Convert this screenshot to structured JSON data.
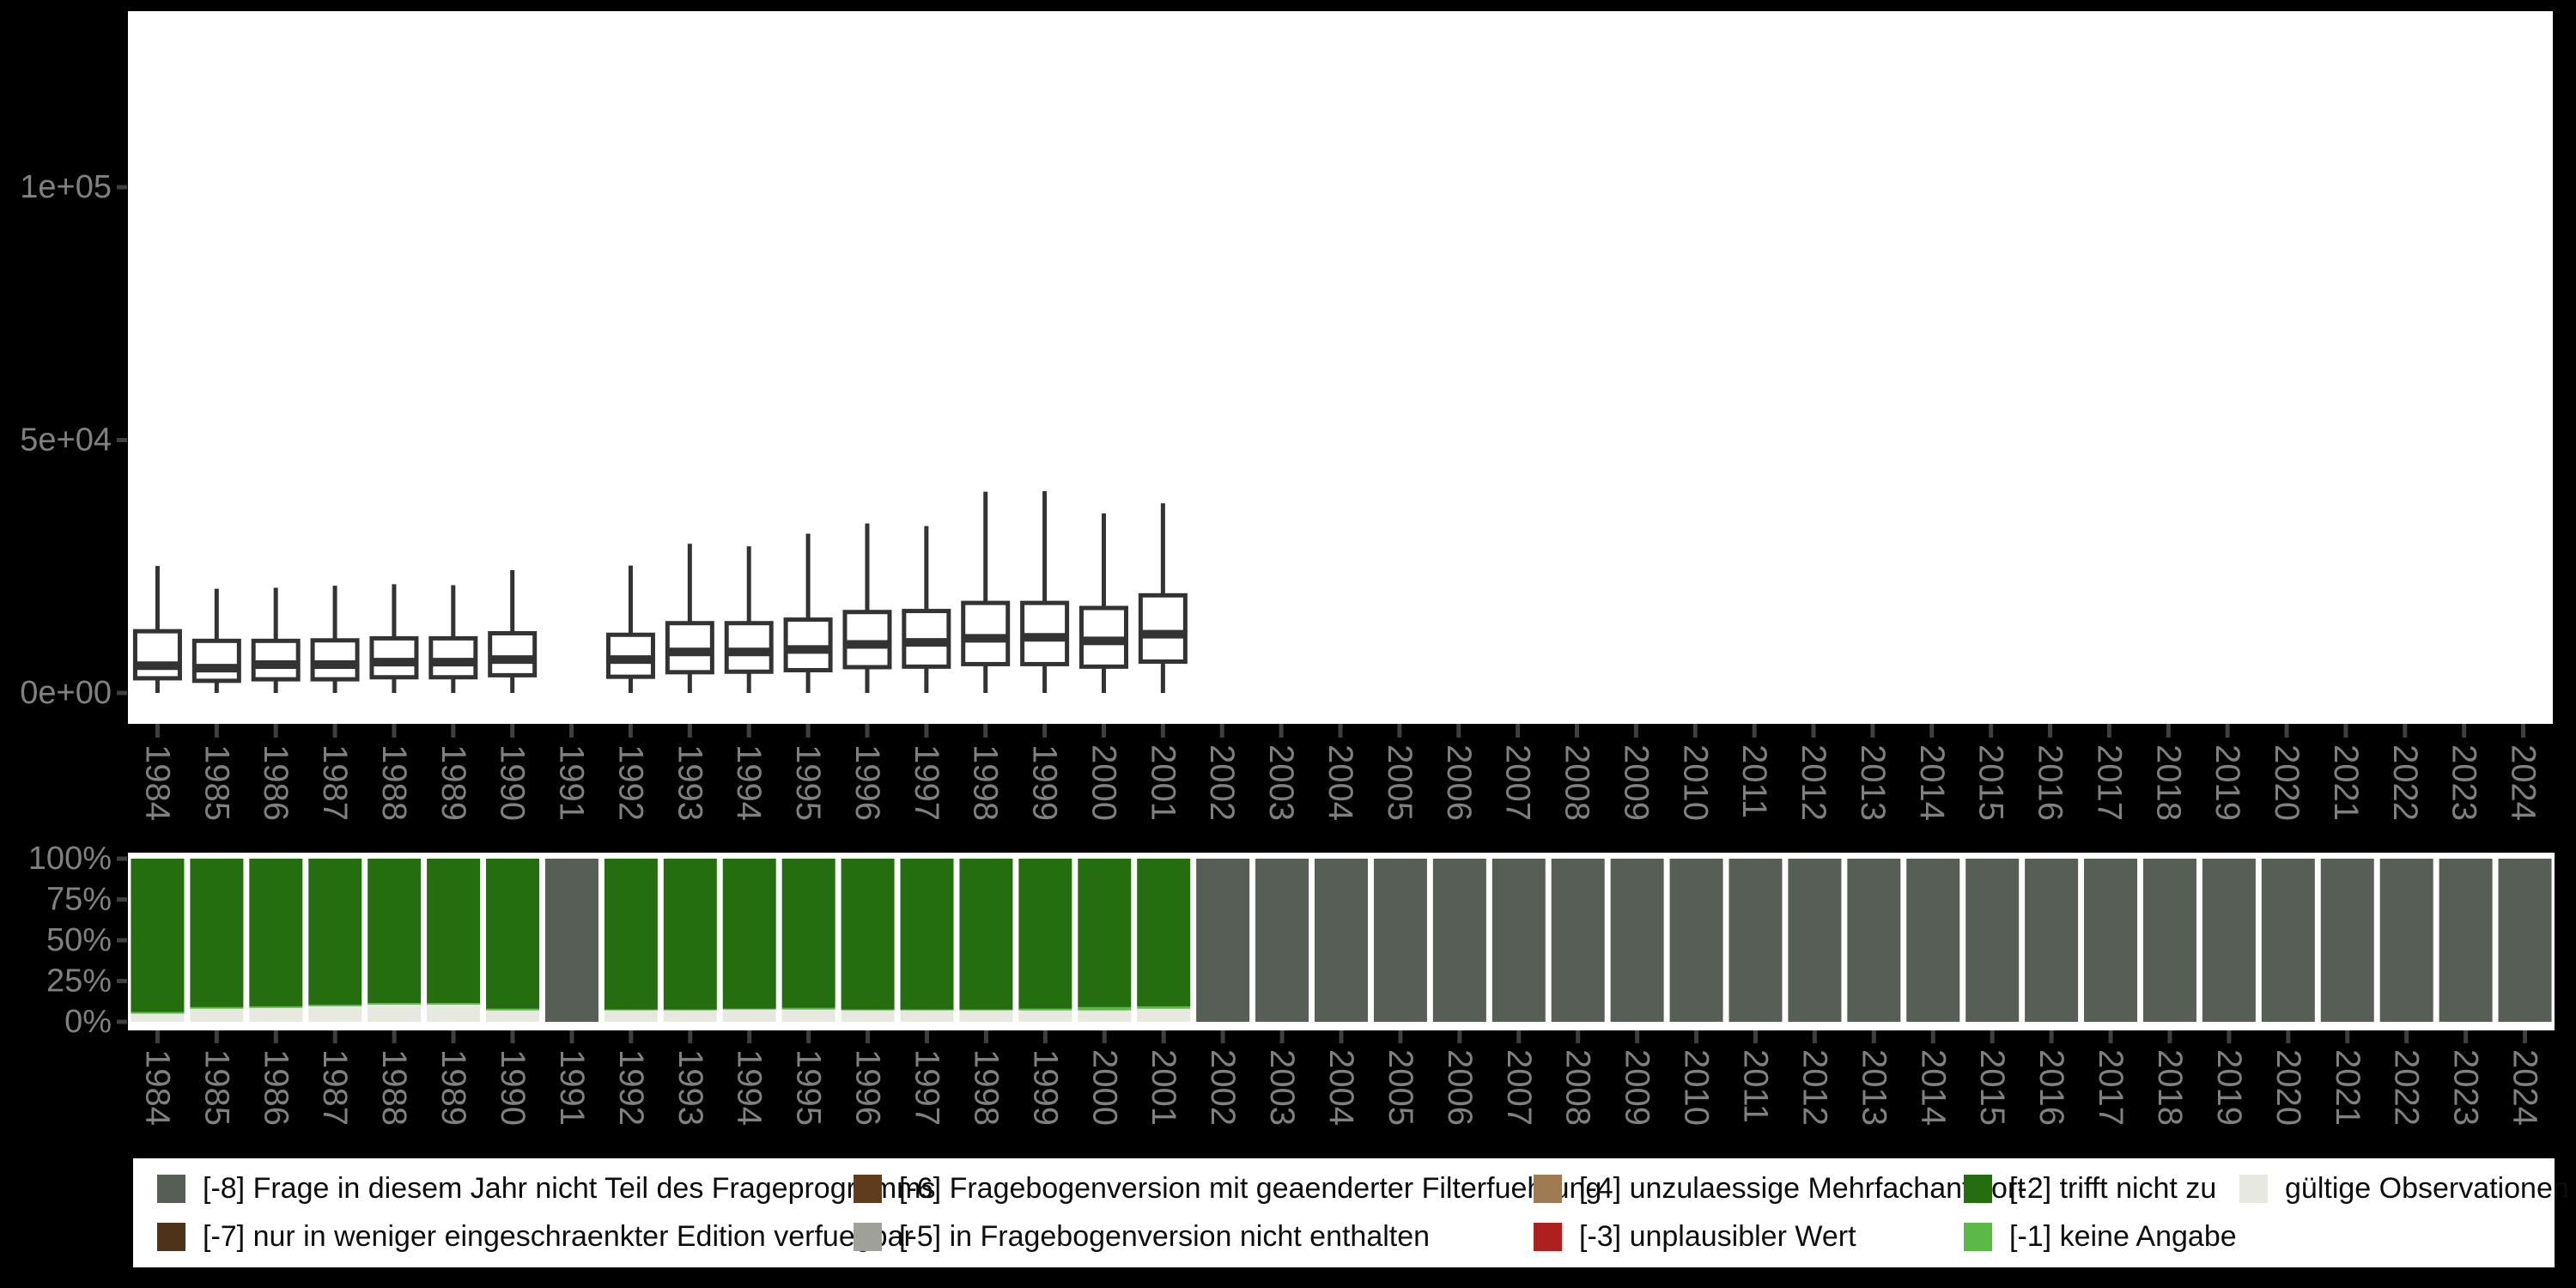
{
  "figure_title": "",
  "colors": {
    "background": "#000000",
    "panel": "#ffffff",
    "box_stroke": "#333333",
    "axis_text": "#808080",
    "tick_mark": "#3f3f3f",
    "valid": "#e7e9e1",
    "na": "#5cb946",
    "tnz": "#246e10",
    "notask": "#575e55",
    "m7": "#4f3318",
    "m6": "#5f3c1c",
    "m5": "#9fa09a",
    "m4": "#9e7b51",
    "m3": "#ae1f1f"
  },
  "chart_data": [
    {
      "type": "boxplot",
      "title": "",
      "xlabel": "",
      "ylabel": "",
      "categories": [
        "1984",
        "1985",
        "1986",
        "1987",
        "1988",
        "1989",
        "1990",
        "1991",
        "1992",
        "1993",
        "1994",
        "1995",
        "1996",
        "1997",
        "1998",
        "1999",
        "2000",
        "2001",
        "2002",
        "2003",
        "2004",
        "2005",
        "2006",
        "2007",
        "2008",
        "2009",
        "2010",
        "2011",
        "2012",
        "2013",
        "2014",
        "2015",
        "2016",
        "2017",
        "2018",
        "2019",
        "2020",
        "2021",
        "2022",
        "2023",
        "2024"
      ],
      "ytick_labels": [
        "0e+00",
        "5e+04",
        "1e+05"
      ],
      "ytick_values": [
        0,
        50000,
        100000
      ],
      "ylim": [
        0,
        135000
      ],
      "grid": false,
      "series": [
        {
          "year": "1984",
          "low": 0,
          "q1": 2900,
          "median": 5400,
          "q3": 12200,
          "high": 25100
        },
        {
          "year": "1985",
          "low": 0,
          "q1": 2400,
          "median": 4900,
          "q3": 10300,
          "high": 20600
        },
        {
          "year": "1986",
          "low": 0,
          "q1": 2700,
          "median": 5600,
          "q3": 10300,
          "high": 20800
        },
        {
          "year": "1987",
          "low": 0,
          "q1": 2700,
          "median": 5600,
          "q3": 10400,
          "high": 21200
        },
        {
          "year": "1988",
          "low": 0,
          "q1": 3100,
          "median": 6100,
          "q3": 10800,
          "high": 21500
        },
        {
          "year": "1989",
          "low": 0,
          "q1": 3100,
          "median": 6100,
          "q3": 10800,
          "high": 21300
        },
        {
          "year": "1990",
          "low": 0,
          "q1": 3500,
          "median": 6600,
          "q3": 11800,
          "high": 24300
        },
        {
          "year": "1992",
          "low": 0,
          "q1": 3200,
          "median": 6600,
          "q3": 11500,
          "high": 25200
        },
        {
          "year": "1993",
          "low": 0,
          "q1": 4100,
          "median": 8100,
          "q3": 13800,
          "high": 29500
        },
        {
          "year": "1994",
          "low": 0,
          "q1": 4200,
          "median": 8100,
          "q3": 13800,
          "high": 29000
        },
        {
          "year": "1995",
          "low": 0,
          "q1": 4500,
          "median": 8600,
          "q3": 14500,
          "high": 31500
        },
        {
          "year": "1996",
          "low": 0,
          "q1": 5100,
          "median": 9600,
          "q3": 16000,
          "high": 33500
        },
        {
          "year": "1997",
          "low": 0,
          "q1": 5200,
          "median": 10000,
          "q3": 16200,
          "high": 33000
        },
        {
          "year": "1998",
          "low": 0,
          "q1": 5700,
          "median": 10800,
          "q3": 17800,
          "high": 39800
        },
        {
          "year": "1999",
          "low": 0,
          "q1": 5700,
          "median": 11000,
          "q3": 17800,
          "high": 39900
        },
        {
          "year": "2000",
          "low": 0,
          "q1": 5200,
          "median": 10300,
          "q3": 16800,
          "high": 35500
        },
        {
          "year": "2001",
          "low": 0,
          "q1": 6200,
          "median": 11600,
          "q3": 19300,
          "high": 37500
        }
      ]
    },
    {
      "type": "stacked_bar_percent",
      "title": "",
      "xlabel": "",
      "ylabel": "",
      "categories": [
        "1984",
        "1985",
        "1986",
        "1987",
        "1988",
        "1989",
        "1990",
        "1991",
        "1992",
        "1993",
        "1994",
        "1995",
        "1996",
        "1997",
        "1998",
        "1999",
        "2000",
        "2001",
        "2002",
        "2003",
        "2004",
        "2005",
        "2006",
        "2007",
        "2008",
        "2009",
        "2010",
        "2011",
        "2012",
        "2013",
        "2014",
        "2015",
        "2016",
        "2017",
        "2018",
        "2019",
        "2020",
        "2021",
        "2022",
        "2023",
        "2024"
      ],
      "ytick_labels": [
        "0%",
        "25%",
        "50%",
        "75%",
        "100%"
      ],
      "ytick_values": [
        0,
        25,
        50,
        75,
        100
      ],
      "ylim": [
        0,
        100
      ],
      "grid": false,
      "stack_order_bottom_to_top": [
        "valid",
        "na",
        "tnz",
        "notask"
      ],
      "bars": [
        {
          "year": "1984",
          "valid": 5,
          "na": 1,
          "tnz": 94
        },
        {
          "year": "1985",
          "valid": 8,
          "na": 1,
          "tnz": 91
        },
        {
          "year": "1986",
          "valid": 8.5,
          "na": 1,
          "tnz": 90.5
        },
        {
          "year": "1987",
          "valid": 9.5,
          "na": 1,
          "tnz": 89.5
        },
        {
          "year": "1988",
          "valid": 10.5,
          "na": 1,
          "tnz": 88.5
        },
        {
          "year": "1989",
          "valid": 10.5,
          "na": 1,
          "tnz": 88.5
        },
        {
          "year": "1990",
          "valid": 7,
          "na": 1,
          "tnz": 92
        },
        {
          "year": "1991",
          "notask": 100
        },
        {
          "year": "1992",
          "valid": 7,
          "na": 0.5,
          "tnz": 92.5
        },
        {
          "year": "1993",
          "valid": 7,
          "na": 0.5,
          "tnz": 92.5
        },
        {
          "year": "1994",
          "valid": 7.5,
          "na": 0.5,
          "tnz": 92
        },
        {
          "year": "1995",
          "valid": 7.5,
          "na": 1,
          "tnz": 91.5
        },
        {
          "year": "1996",
          "valid": 7,
          "na": 0.5,
          "tnz": 92.5
        },
        {
          "year": "1997",
          "valid": 7,
          "na": 0.5,
          "tnz": 92.5
        },
        {
          "year": "1998",
          "valid": 7,
          "na": 0.5,
          "tnz": 92.5
        },
        {
          "year": "1999",
          "valid": 7,
          "na": 1,
          "tnz": 92
        },
        {
          "year": "2000",
          "valid": 7,
          "na": 2,
          "tnz": 91
        },
        {
          "year": "2001",
          "valid": 8,
          "na": 1.5,
          "tnz": 90.5
        },
        {
          "year": "2002",
          "notask": 100
        },
        {
          "year": "2003",
          "notask": 100
        },
        {
          "year": "2004",
          "notask": 100
        },
        {
          "year": "2005",
          "notask": 100
        },
        {
          "year": "2006",
          "notask": 100
        },
        {
          "year": "2007",
          "notask": 100
        },
        {
          "year": "2008",
          "notask": 100
        },
        {
          "year": "2009",
          "notask": 100
        },
        {
          "year": "2010",
          "notask": 100
        },
        {
          "year": "2011",
          "notask": 100
        },
        {
          "year": "2012",
          "notask": 100
        },
        {
          "year": "2013",
          "notask": 100
        },
        {
          "year": "2014",
          "notask": 100
        },
        {
          "year": "2015",
          "notask": 100
        },
        {
          "year": "2016",
          "notask": 100
        },
        {
          "year": "2017",
          "notask": 100
        },
        {
          "year": "2018",
          "notask": 100
        },
        {
          "year": "2019",
          "notask": 100
        },
        {
          "year": "2020",
          "notask": 100
        },
        {
          "year": "2021",
          "notask": 100
        },
        {
          "year": "2022",
          "notask": 100
        },
        {
          "year": "2023",
          "notask": 100
        },
        {
          "year": "2024",
          "notask": 100
        }
      ]
    }
  ],
  "legend": {
    "position": "bottom",
    "columns": [
      [
        {
          "label": "[-8] Frage in diesem Jahr nicht Teil des Frageprogramms",
          "color_key": "notask"
        },
        {
          "label": "[-7] nur in weniger eingeschraenkter Edition verfuegbar",
          "color_key": "m7"
        }
      ],
      [
        {
          "label": "[-6] Fragebogenversion mit geaenderter Filterfuehrung",
          "color_key": "m6"
        },
        {
          "label": "[-5] in Fragebogenversion nicht enthalten",
          "color_key": "m5"
        }
      ],
      [
        {
          "label": "[-4] unzulaessige Mehrfachantwort",
          "color_key": "m4"
        },
        {
          "label": "[-3] unplausibler Wert",
          "color_key": "m3"
        }
      ],
      [
        {
          "label": "[-2] trifft nicht zu",
          "color_key": "tnz"
        },
        {
          "label": "[-1] keine Angabe",
          "color_key": "na"
        }
      ],
      [
        {
          "label": "gültige Observationen",
          "color_key": "valid"
        }
      ]
    ]
  }
}
